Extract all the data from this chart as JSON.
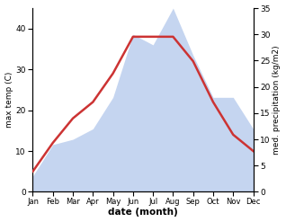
{
  "months": [
    "Jan",
    "Feb",
    "Mar",
    "Apr",
    "May",
    "Jun",
    "Jul",
    "Aug",
    "Sep",
    "Oct",
    "Nov",
    "Dec"
  ],
  "max_temp": [
    5,
    12,
    18,
    22,
    29,
    38,
    38,
    38,
    32,
    22,
    14,
    10
  ],
  "precipitation": [
    3,
    9,
    10,
    12,
    18,
    30,
    28,
    35,
    26,
    18,
    18,
    12
  ],
  "temp_color": "#cc3333",
  "precip_fill_color": "#c5d5f0",
  "ylim_temp": [
    0,
    45
  ],
  "ylim_precip": [
    0,
    35
  ],
  "yticks_temp": [
    0,
    10,
    20,
    30,
    40
  ],
  "yticks_precip": [
    0,
    5,
    10,
    15,
    20,
    25,
    30,
    35
  ],
  "xlabel": "date (month)",
  "ylabel_left": "max temp (C)",
  "ylabel_right": "med. precipitation (kg/m2)",
  "temp_linewidth": 1.8,
  "bg_color": "#ffffff"
}
